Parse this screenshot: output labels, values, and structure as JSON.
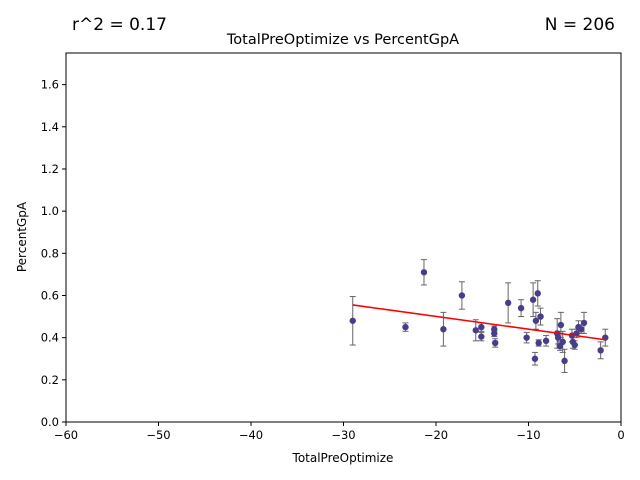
{
  "chart_data": {
    "type": "scatter",
    "title": "TotalPreOptimize vs PercentGpA",
    "stat_left": "r^2 = 0.17",
    "stat_right": "N = 206",
    "xlabel": "TotalPreOptimize",
    "ylabel": "PercentGpA",
    "xlim": [
      -60,
      0
    ],
    "ylim": [
      0,
      1.75
    ],
    "xticks": [
      -60,
      -50,
      -40,
      -30,
      -20,
      -10,
      0
    ],
    "yticks": [
      0.0,
      0.2,
      0.4,
      0.6,
      0.8,
      1.0,
      1.2,
      1.4,
      1.6
    ],
    "grid": false,
    "colors": {
      "points": "#483d8b",
      "errorbars": "#666666",
      "fit": "#ff0000"
    },
    "fit_line": {
      "x": [
        -29,
        -1.7
      ],
      "y": [
        0.555,
        0.39
      ]
    },
    "points": [
      {
        "x": -29.0,
        "y": 0.48,
        "err": 0.115
      },
      {
        "x": -23.3,
        "y": 0.45,
        "err": 0.02
      },
      {
        "x": -21.3,
        "y": 0.71,
        "err": 0.06
      },
      {
        "x": -19.2,
        "y": 0.44,
        "err": 0.08
      },
      {
        "x": -17.2,
        "y": 0.6,
        "err": 0.065
      },
      {
        "x": -15.7,
        "y": 0.435,
        "err": 0.05
      },
      {
        "x": -15.1,
        "y": 0.405,
        "err": 0.02
      },
      {
        "x": -15.1,
        "y": 0.45,
        "err": 0.02
      },
      {
        "x": -13.7,
        "y": 0.44,
        "err": 0.015
      },
      {
        "x": -13.7,
        "y": 0.42,
        "err": 0.015
      },
      {
        "x": -13.6,
        "y": 0.375,
        "err": 0.02
      },
      {
        "x": -12.2,
        "y": 0.565,
        "err": 0.095
      },
      {
        "x": -10.8,
        "y": 0.54,
        "err": 0.04
      },
      {
        "x": -10.2,
        "y": 0.4,
        "err": 0.025
      },
      {
        "x": -9.5,
        "y": 0.58,
        "err": 0.08
      },
      {
        "x": -9.3,
        "y": 0.3,
        "err": 0.03
      },
      {
        "x": -9.2,
        "y": 0.48,
        "err": 0.04
      },
      {
        "x": -9.0,
        "y": 0.61,
        "err": 0.06
      },
      {
        "x": -8.9,
        "y": 0.375,
        "err": 0.015
      },
      {
        "x": -8.7,
        "y": 0.5,
        "err": 0.04
      },
      {
        "x": -8.1,
        "y": 0.385,
        "err": 0.025
      },
      {
        "x": -6.9,
        "y": 0.42,
        "err": 0.07
      },
      {
        "x": -6.8,
        "y": 0.4,
        "err": 0.03
      },
      {
        "x": -6.6,
        "y": 0.36,
        "err": 0.02
      },
      {
        "x": -6.5,
        "y": 0.46,
        "err": 0.06
      },
      {
        "x": -6.3,
        "y": 0.38,
        "err": 0.05
      },
      {
        "x": -6.1,
        "y": 0.29,
        "err": 0.055
      },
      {
        "x": -5.3,
        "y": 0.41,
        "err": 0.03
      },
      {
        "x": -5.2,
        "y": 0.38,
        "err": 0.03
      },
      {
        "x": -5.0,
        "y": 0.365,
        "err": 0.02
      },
      {
        "x": -4.8,
        "y": 0.42,
        "err": 0.02
      },
      {
        "x": -4.6,
        "y": 0.45,
        "err": 0.03
      },
      {
        "x": -4.3,
        "y": 0.44,
        "err": 0.02
      },
      {
        "x": -4.0,
        "y": 0.47,
        "err": 0.05
      },
      {
        "x": -2.2,
        "y": 0.34,
        "err": 0.04
      },
      {
        "x": -1.7,
        "y": 0.4,
        "err": 0.04
      }
    ]
  }
}
